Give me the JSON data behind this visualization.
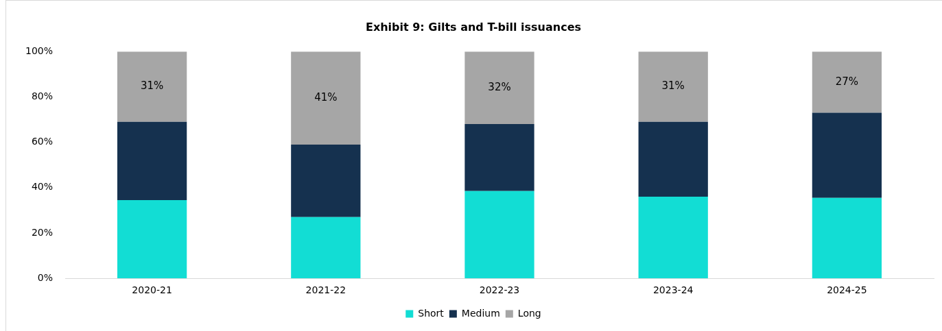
{
  "chart_data": {
    "type": "bar",
    "title": "Exhibit 9: Gilts and T-bill issuances",
    "stacked": true,
    "categories": [
      "2020-21",
      "2021-22",
      "2022-23",
      "2023-24",
      "2024-25"
    ],
    "series": [
      {
        "name": "Short",
        "color": "#12ddd4",
        "values": [
          34.5,
          27,
          38.5,
          36,
          35.5
        ]
      },
      {
        "name": "Medium",
        "color": "#15314f",
        "values": [
          34.5,
          32,
          29.5,
          33,
          37.5
        ]
      },
      {
        "name": "Long",
        "color": "#a6a6a6",
        "values": [
          31,
          41,
          32,
          31,
          27
        ],
        "value_labels": [
          "31%",
          "41%",
          "32%",
          "31%",
          "27%"
        ]
      }
    ],
    "ylim": [
      0,
      100
    ],
    "yticks": [
      {
        "value": 0,
        "label": "0%"
      },
      {
        "value": 20,
        "label": "20%"
      },
      {
        "value": 40,
        "label": "40%"
      },
      {
        "value": 60,
        "label": "60%"
      },
      {
        "value": 80,
        "label": "80%"
      },
      {
        "value": 100,
        "label": "100%"
      }
    ],
    "grid": false,
    "legend": "bottom"
  }
}
